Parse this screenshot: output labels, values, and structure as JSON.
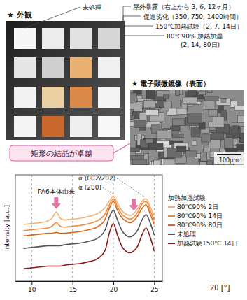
{
  "appearance": {
    "title": "★ 外観",
    "labels": [
      "未処理",
      "屋外暴露（右上から 3, 6, 12ヶ月）",
      "促進劣化（350, 750, 1400時間）",
      "150℃加熱試験（2, 7, 14日）",
      "80℃90% 加熱加湿",
      "(2, 14, 80日)"
    ]
  },
  "micrograph": {
    "title": "★ 電子顕微鏡像（表面）",
    "callout": "矩形の結晶が卓越",
    "scale_bar": "100μm"
  },
  "chart_data": {
    "type": "line",
    "x_label": "2θ [°]",
    "y_label": "Intensity [a.u.]",
    "x": [
      9,
      10,
      11,
      12,
      12.5,
      13,
      13.5,
      14,
      15,
      16,
      17,
      18,
      19,
      19.5,
      20,
      20.5,
      21,
      21.5,
      22,
      22.5,
      23,
      23.5,
      24,
      24.5,
      25
    ],
    "xlim": [
      8,
      26
    ],
    "xticks": [
      10,
      15,
      20,
      25
    ],
    "ylim": [
      0,
      12
    ],
    "tick_labels": "x",
    "grid": true,
    "legend": "right",
    "legend_title": "加熱加湿試験",
    "series": [
      {
        "name": "80℃90% 2日",
        "color": "#f5b26e",
        "values": [
          6.4,
          6.5,
          6.6,
          6.8,
          7.1,
          7.8,
          7.1,
          6.9,
          7.0,
          7.1,
          7.3,
          7.6,
          8.3,
          9.0,
          9.6,
          8.8,
          8.0,
          7.6,
          7.4,
          7.6,
          8.2,
          9.0,
          9.3,
          8.4,
          7.4
        ]
      },
      {
        "name": "80℃90% 14日",
        "color": "#ee8a3c",
        "values": [
          5.7,
          5.8,
          5.9,
          6.0,
          6.2,
          6.6,
          6.2,
          6.1,
          6.2,
          6.3,
          6.5,
          6.8,
          7.6,
          8.6,
          9.3,
          8.4,
          7.6,
          7.2,
          7.0,
          7.2,
          7.8,
          8.7,
          9.0,
          8.0,
          6.9
        ]
      },
      {
        "name": "80℃90% 80日",
        "color": "#d9691e",
        "values": [
          5.1,
          5.2,
          5.3,
          5.4,
          5.4,
          5.5,
          5.4,
          5.4,
          5.5,
          5.6,
          5.8,
          6.1,
          7.0,
          8.2,
          9.0,
          8.0,
          7.2,
          6.8,
          6.6,
          6.8,
          7.4,
          8.2,
          8.6,
          7.6,
          6.4
        ]
      },
      {
        "name": "未処理",
        "color": "#555555",
        "values": [
          3.7,
          3.8,
          3.9,
          4.0,
          4.0,
          4.0,
          4.0,
          4.1,
          4.2,
          4.3,
          4.5,
          4.8,
          5.8,
          7.2,
          8.0,
          6.9,
          5.8,
          5.2,
          5.0,
          5.2,
          5.8,
          6.9,
          7.5,
          6.6,
          5.2
        ]
      },
      {
        "name": "加熱試験150℃ 14日",
        "color": "#8b1a1a",
        "values": [
          1.4,
          1.5,
          1.6,
          1.7,
          1.7,
          1.7,
          1.7,
          1.8,
          1.9,
          2.0,
          2.2,
          2.5,
          3.5,
          5.4,
          6.5,
          5.2,
          4.0,
          3.4,
          3.2,
          3.4,
          4.0,
          5.2,
          6.0,
          5.0,
          3.4
        ]
      }
    ],
    "annotations": [
      {
        "text": "α (002/202)",
        "x": 23.8
      },
      {
        "text": "α (200)",
        "x": 20
      },
      {
        "text": "PA6本体由来",
        "x": 13
      }
    ],
    "arrows": [
      {
        "x": 13
      },
      {
        "x": 22.5
      }
    ]
  }
}
